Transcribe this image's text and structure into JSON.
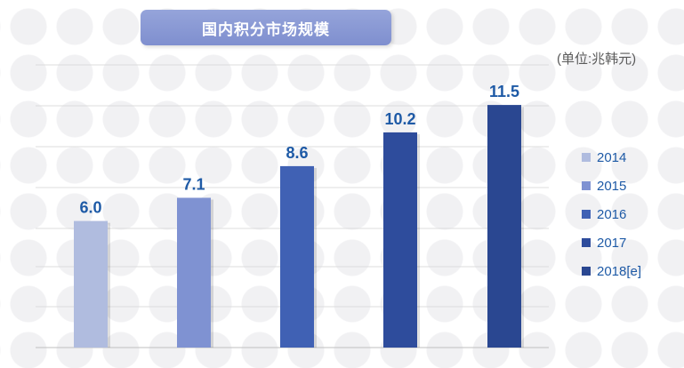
{
  "chart_data": {
    "type": "bar",
    "title": "国内积分市场规模",
    "unit": "(单位:兆韩元)",
    "categories": [
      "2014",
      "2015",
      "2016",
      "2017",
      "2018[e]"
    ],
    "values": [
      6.0,
      7.1,
      8.6,
      10.2,
      11.5
    ],
    "value_labels": [
      "6.0",
      "7.1",
      "8.6",
      "10.2",
      "11.5"
    ],
    "colors": [
      "#b0bcdf",
      "#7f92d2",
      "#4061b4",
      "#2e4c9c",
      "#2a4791"
    ],
    "label_color": "#1e5aa6",
    "ylim": [
      0,
      13.4
    ],
    "grid": true,
    "legend_position": "right"
  }
}
